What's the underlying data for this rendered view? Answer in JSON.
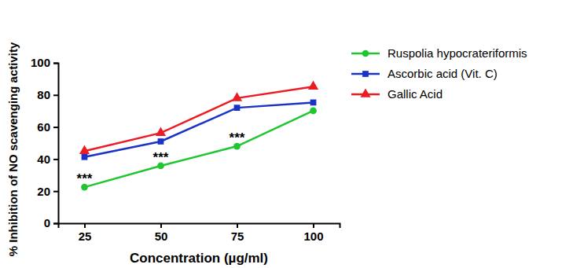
{
  "chart_data": {
    "type": "line",
    "x_label": "Concentration (µg/ml)",
    "y_label": "% Inhibition of NO scavenging activity",
    "categories": [
      "25",
      "50",
      "75",
      "100"
    ],
    "series": [
      {
        "name": "Ruspolia hypocrateriformis",
        "color": "#1fc632",
        "marker": "circle",
        "values": [
          22.5,
          35.8,
          48,
          70.2
        ]
      },
      {
        "name": "Ascorbic acid (Vit. C)",
        "color": "#1b32c6",
        "marker": "square",
        "values": [
          41.3,
          51,
          72,
          75.3
        ]
      },
      {
        "name": "Gallic Acid",
        "color": "#ec1c24",
        "marker": "triangle",
        "values": [
          45,
          56.3,
          78,
          85.2
        ]
      }
    ],
    "ylim": [
      0,
      100
    ],
    "yticks": [
      0,
      20,
      40,
      60,
      80,
      100
    ],
    "grid": false,
    "legend": "right",
    "annotations": [
      {
        "text": "***",
        "category": "25",
        "y": 22.5
      },
      {
        "text": "***",
        "category": "50",
        "y": 35.8
      },
      {
        "text": "***",
        "category": "75",
        "y": 48
      }
    ]
  }
}
